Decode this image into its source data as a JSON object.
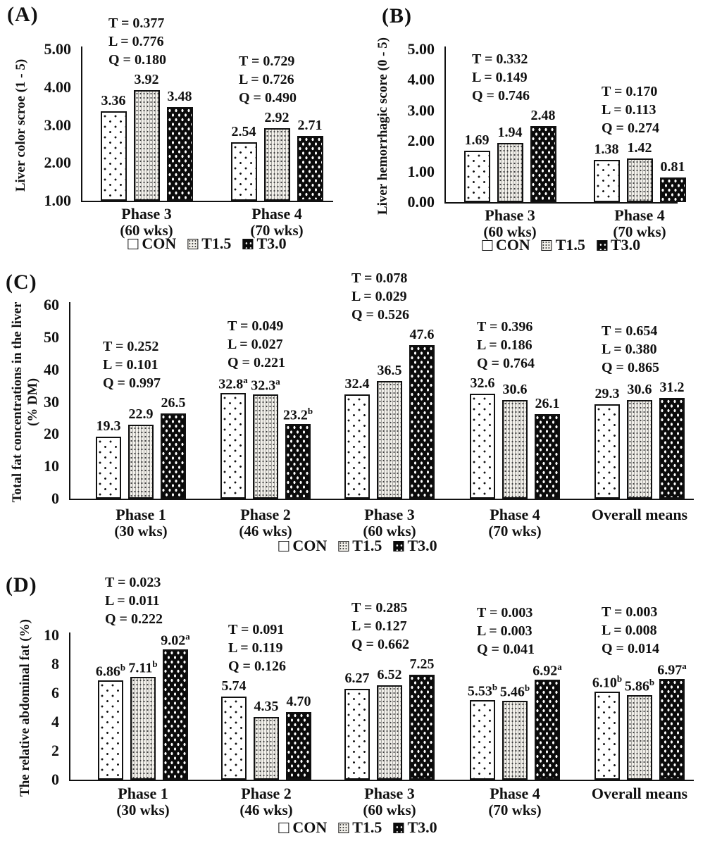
{
  "chart_data": [
    {
      "type": "bar",
      "panel": "(A)",
      "ylabel": [
        "Liver color scroe (1 - 5)"
      ],
      "ylim": [
        1,
        5
      ],
      "yticks": [
        "5.00",
        "4.00",
        "3.00",
        "2.00",
        "1.00"
      ],
      "grid": false,
      "legend": [
        "CON",
        "T1.5",
        "T3.0"
      ],
      "legend_position": "bottom",
      "groups": [
        {
          "label": "Phase 3",
          "sub": "(60 wks)",
          "stats": [
            "T = 0.377",
            "L = 0.776",
            "Q = 0.180"
          ],
          "bars": [
            {
              "series": "CON",
              "value": 3.36,
              "label": "3.36",
              "sup": ""
            },
            {
              "series": "T1.5",
              "value": 3.92,
              "label": "3.92",
              "sup": ""
            },
            {
              "series": "T3.0",
              "value": 3.48,
              "label": "3.48",
              "sup": ""
            }
          ]
        },
        {
          "label": "Phase 4",
          "sub": "(70 wks)",
          "stats": [
            "T = 0.729",
            "L = 0.726",
            "Q = 0.490"
          ],
          "bars": [
            {
              "series": "CON",
              "value": 2.54,
              "label": "2.54",
              "sup": ""
            },
            {
              "series": "T1.5",
              "value": 2.92,
              "label": "2.92",
              "sup": ""
            },
            {
              "series": "T3.0",
              "value": 2.71,
              "label": "2.71",
              "sup": ""
            }
          ]
        }
      ]
    },
    {
      "type": "bar",
      "panel": "(B)",
      "ylabel": [
        "Liver hemorrhagic score (0 - 5)"
      ],
      "ylim": [
        0,
        5
      ],
      "yticks": [
        "5.00",
        "4.00",
        "3.00",
        "2.00",
        "1.00",
        "0.00"
      ],
      "grid": false,
      "legend": [
        "CON",
        "T1.5",
        "T3.0"
      ],
      "legend_position": "bottom",
      "groups": [
        {
          "label": "Phase 3",
          "sub": "(60 wks)",
          "stats": [
            "T = 0.332",
            "L = 0.149",
            "Q = 0.746"
          ],
          "bars": [
            {
              "series": "CON",
              "value": 1.69,
              "label": "1.69",
              "sup": ""
            },
            {
              "series": "T1.5",
              "value": 1.94,
              "label": "1.94",
              "sup": ""
            },
            {
              "series": "T3.0",
              "value": 2.48,
              "label": "2.48",
              "sup": ""
            }
          ]
        },
        {
          "label": "Phase 4",
          "sub": "(70 wks)",
          "stats": [
            "T = 0.170",
            "L = 0.113",
            "Q = 0.274"
          ],
          "bars": [
            {
              "series": "CON",
              "value": 1.38,
              "label": "1.38",
              "sup": ""
            },
            {
              "series": "T1.5",
              "value": 1.42,
              "label": "1.42",
              "sup": ""
            },
            {
              "series": "T3.0",
              "value": 0.81,
              "label": "0.81",
              "sup": ""
            }
          ]
        }
      ]
    },
    {
      "type": "bar",
      "panel": "(C)",
      "ylabel": [
        "Total fat concentrations in the liver",
        "(% DM)"
      ],
      "ylim": [
        0,
        60
      ],
      "yticks": [
        "60",
        "50",
        "40",
        "30",
        "20",
        "10",
        "0"
      ],
      "grid": false,
      "legend": [
        "CON",
        "T1.5",
        "T3.0"
      ],
      "legend_position": "bottom",
      "groups": [
        {
          "label": "Phase 1",
          "sub": "(30 wks)",
          "stats": [
            "T = 0.252",
            "L = 0.101",
            "Q = 0.997"
          ],
          "bars": [
            {
              "series": "CON",
              "value": 19.3,
              "label": "19.3",
              "sup": ""
            },
            {
              "series": "T1.5",
              "value": 22.9,
              "label": "22.9",
              "sup": ""
            },
            {
              "series": "T3.0",
              "value": 26.5,
              "label": "26.5",
              "sup": ""
            }
          ]
        },
        {
          "label": "Phase 2",
          "sub": "(46 wks)",
          "stats": [
            "T = 0.049",
            "L = 0.027",
            "Q = 0.221"
          ],
          "bars": [
            {
              "series": "CON",
              "value": 32.8,
              "label": "32.8",
              "sup": "a"
            },
            {
              "series": "T1.5",
              "value": 32.3,
              "label": "32.3",
              "sup": "a"
            },
            {
              "series": "T3.0",
              "value": 23.2,
              "label": "23.2",
              "sup": "b"
            }
          ]
        },
        {
          "label": "Phase 3",
          "sub": "(60 wks)",
          "stats": [
            "T = 0.078",
            "L = 0.029",
            "Q = 0.526"
          ],
          "bars": [
            {
              "series": "CON",
              "value": 32.4,
              "label": "32.4",
              "sup": ""
            },
            {
              "series": "T1.5",
              "value": 36.5,
              "label": "36.5",
              "sup": ""
            },
            {
              "series": "T3.0",
              "value": 47.6,
              "label": "47.6",
              "sup": ""
            }
          ]
        },
        {
          "label": "Phase 4",
          "sub": "(70 wks)",
          "stats": [
            "T = 0.396",
            "L = 0.186",
            "Q = 0.764"
          ],
          "bars": [
            {
              "series": "CON",
              "value": 32.6,
              "label": "32.6",
              "sup": ""
            },
            {
              "series": "T1.5",
              "value": 30.6,
              "label": "30.6",
              "sup": ""
            },
            {
              "series": "T3.0",
              "value": 26.1,
              "label": "26.1",
              "sup": ""
            }
          ]
        },
        {
          "label": "Overall means",
          "sub": "",
          "stats": [
            "T = 0.654",
            "L = 0.380",
            "Q = 0.865"
          ],
          "bars": [
            {
              "series": "CON",
              "value": 29.3,
              "label": "29.3",
              "sup": ""
            },
            {
              "series": "T1.5",
              "value": 30.6,
              "label": "30.6",
              "sup": ""
            },
            {
              "series": "T3.0",
              "value": 31.2,
              "label": "31.2",
              "sup": ""
            }
          ]
        }
      ]
    },
    {
      "type": "bar",
      "panel": "(D)",
      "ylabel": [
        "The relative abdominal fat (%)"
      ],
      "ylim": [
        0,
        10
      ],
      "yticks": [
        "10",
        "8",
        "6",
        "4",
        "2",
        "0"
      ],
      "grid": false,
      "legend": [
        "CON",
        "T1.5",
        "T3.0"
      ],
      "legend_position": "bottom",
      "groups": [
        {
          "label": "Phase 1",
          "sub": "(30 wks)",
          "stats": [
            "T = 0.023",
            "L = 0.011",
            "Q = 0.222"
          ],
          "bars": [
            {
              "series": "CON",
              "value": 6.86,
              "label": "6.86",
              "sup": "b"
            },
            {
              "series": "T1.5",
              "value": 7.11,
              "label": "7.11",
              "sup": "b"
            },
            {
              "series": "T3.0",
              "value": 9.02,
              "label": "9.02",
              "sup": "a"
            }
          ]
        },
        {
          "label": "Phase 2",
          "sub": "(46 wks)",
          "stats": [
            "T = 0.091",
            "L = 0.119",
            "Q = 0.126"
          ],
          "bars": [
            {
              "series": "CON",
              "value": 5.74,
              "label": "5.74",
              "sup": ""
            },
            {
              "series": "T1.5",
              "value": 4.35,
              "label": "4.35",
              "sup": ""
            },
            {
              "series": "T3.0",
              "value": 4.7,
              "label": "4.70",
              "sup": ""
            }
          ]
        },
        {
          "label": "Phase 3",
          "sub": "(60 wks)",
          "stats": [
            "T = 0.285",
            "L = 0.127",
            "Q = 0.662"
          ],
          "bars": [
            {
              "series": "CON",
              "value": 6.27,
              "label": "6.27",
              "sup": ""
            },
            {
              "series": "T1.5",
              "value": 6.52,
              "label": "6.52",
              "sup": ""
            },
            {
              "series": "T3.0",
              "value": 7.25,
              "label": "7.25",
              "sup": ""
            }
          ]
        },
        {
          "label": "Phase 4",
          "sub": "(70 wks)",
          "stats": [
            "T = 0.003",
            "L = 0.003",
            "Q = 0.041"
          ],
          "bars": [
            {
              "series": "CON",
              "value": 5.53,
              "label": "5.53",
              "sup": "b"
            },
            {
              "series": "T1.5",
              "value": 5.46,
              "label": "5.46",
              "sup": "b"
            },
            {
              "series": "T3.0",
              "value": 6.92,
              "label": "6.92",
              "sup": "a"
            }
          ]
        },
        {
          "label": "Overall means",
          "sub": "",
          "stats": [
            "T = 0.003",
            "L = 0.008",
            "Q = 0.014"
          ],
          "bars": [
            {
              "series": "CON",
              "value": 6.1,
              "label": "6.10",
              "sup": "b"
            },
            {
              "series": "T1.5",
              "value": 5.86,
              "label": "5.86",
              "sup": "b"
            },
            {
              "series": "T3.0",
              "value": 6.97,
              "label": "6.97",
              "sup": "a"
            }
          ]
        }
      ]
    }
  ]
}
